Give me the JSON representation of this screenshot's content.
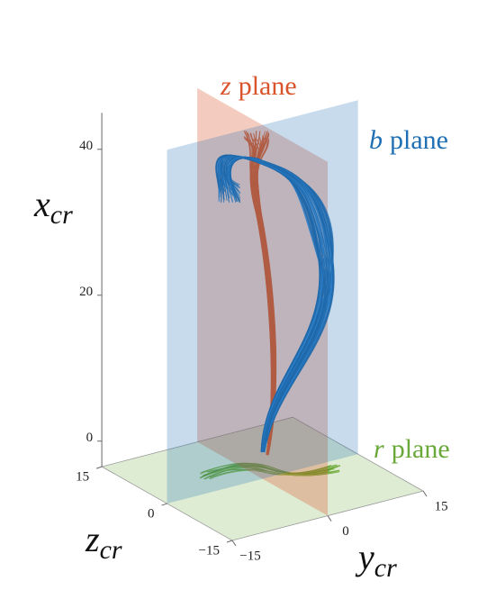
{
  "chart_data": {
    "type": "line3d",
    "xlabel": {
      "text": "x",
      "subscript": "cr"
    },
    "ylabel": {
      "text": "y",
      "subscript": "cr"
    },
    "zlabel": {
      "text": "z",
      "subscript": "cr"
    },
    "xlim": [
      -3.5,
      45
    ],
    "xticks": [
      0,
      20,
      40
    ],
    "ylim": [
      -15,
      15
    ],
    "yticks": [
      {
        "value": -15,
        "label": "−15"
      },
      0,
      15
    ],
    "zlim": [
      -15,
      15
    ],
    "zticks": [
      {
        "value": -15,
        "label": "−15"
      },
      0,
      15
    ],
    "planes": [
      {
        "symbol": "z",
        "word": "plane",
        "color": "#d9532b"
      },
      {
        "symbol": "b",
        "word": "plane",
        "color": "#1f6fb4"
      },
      {
        "symbol": "r",
        "word": "plane",
        "color": "#6aa83a"
      }
    ]
  }
}
